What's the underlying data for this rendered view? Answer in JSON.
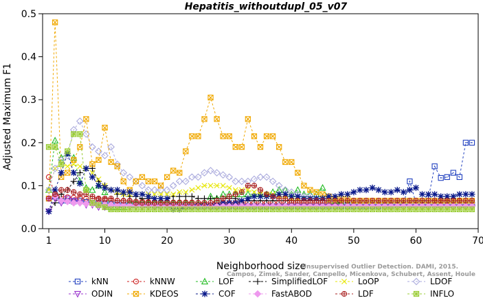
{
  "chart_data": {
    "type": "line",
    "title": "Hepatitis_withoutdupl_05_v07",
    "xlabel": "Neighborhood size",
    "ylabel": "Adjusted Maximum F1",
    "xlim": [
      0,
      70
    ],
    "ylim": [
      0,
      0.5
    ],
    "xticks": [
      1,
      10,
      20,
      30,
      40,
      50,
      60,
      70
    ],
    "yticks": [
      0.0,
      0.1,
      0.2,
      0.3,
      0.4,
      0.5
    ],
    "xtick_labels": [
      "1",
      "10",
      "20",
      "30",
      "40",
      "50",
      "60",
      "70"
    ],
    "ytick_labels": [
      "0.0",
      "0.1",
      "0.2",
      "0.3",
      "0.4",
      "0.5"
    ],
    "x": [
      1,
      2,
      3,
      4,
      5,
      6,
      7,
      8,
      9,
      10,
      11,
      12,
      13,
      14,
      15,
      16,
      17,
      18,
      19,
      20,
      21,
      22,
      23,
      24,
      25,
      26,
      27,
      28,
      29,
      30,
      31,
      32,
      33,
      34,
      35,
      36,
      37,
      38,
      39,
      40,
      41,
      42,
      43,
      44,
      45,
      46,
      47,
      48,
      49,
      50,
      51,
      52,
      53,
      54,
      55,
      56,
      57,
      58,
      59,
      60,
      61,
      62,
      63,
      64,
      65,
      66,
      67,
      68,
      69
    ],
    "legend_position": "bottom",
    "legend_columns": 6,
    "series": [
      {
        "name": "kNN",
        "color": "#1f3fbf",
        "marker": "square-dot",
        "values": [
          0.07,
          0.075,
          0.065,
          0.065,
          0.063,
          0.065,
          0.062,
          0.06,
          0.06,
          0.058,
          0.057,
          0.056,
          0.055,
          0.055,
          0.055,
          0.055,
          0.055,
          0.054,
          0.054,
          0.054,
          0.053,
          0.053,
          0.052,
          0.052,
          0.052,
          0.052,
          0.052,
          0.052,
          0.052,
          0.052,
          0.052,
          0.052,
          0.052,
          0.052,
          0.052,
          0.052,
          0.052,
          0.052,
          0.052,
          0.052,
          0.052,
          0.052,
          0.052,
          0.052,
          0.052,
          0.052,
          0.052,
          0.052,
          0.052,
          0.052,
          0.052,
          0.052,
          0.052,
          0.052,
          0.052,
          0.052,
          0.055,
          0.058,
          0.11,
          0.06,
          0.06,
          0.07,
          0.145,
          0.118,
          0.12,
          0.13,
          0.12,
          0.2,
          0.2
        ]
      },
      {
        "name": "kNNW",
        "color": "#cc2222",
        "marker": "circle",
        "values": [
          0.12,
          0.08,
          0.075,
          0.073,
          0.072,
          0.072,
          0.07,
          0.07,
          0.068,
          0.067,
          0.066,
          0.065,
          0.064,
          0.064,
          0.063,
          0.063,
          0.062,
          0.062,
          0.062,
          0.062,
          0.061,
          0.061,
          0.061,
          0.061,
          0.06,
          0.06,
          0.06,
          0.06,
          0.06,
          0.06,
          0.06,
          0.06,
          0.06,
          0.06,
          0.06,
          0.06,
          0.06,
          0.06,
          0.06,
          0.06,
          0.06,
          0.06,
          0.06,
          0.06,
          0.06,
          0.06,
          0.06,
          0.06,
          0.06,
          0.06,
          0.06,
          0.06,
          0.06,
          0.06,
          0.06,
          0.06,
          0.06,
          0.06,
          0.06,
          0.06,
          0.06,
          0.06,
          0.062,
          0.062,
          0.062,
          0.064,
          0.064,
          0.065,
          0.065
        ]
      },
      {
        "name": "LOF",
        "color": "#22bb22",
        "marker": "triangle-up",
        "values": [
          0.09,
          0.205,
          0.165,
          0.175,
          0.165,
          0.11,
          0.095,
          0.09,
          0.1,
          0.085,
          0.05,
          0.05,
          0.05,
          0.06,
          0.06,
          0.062,
          0.06,
          0.06,
          0.06,
          0.06,
          0.06,
          0.06,
          0.06,
          0.06,
          0.058,
          0.058,
          0.075,
          0.07,
          0.08,
          0.08,
          0.08,
          0.08,
          0.08,
          0.08,
          0.08,
          0.08,
          0.085,
          0.09,
          0.09,
          0.08,
          0.09,
          0.08,
          0.08,
          0.08,
          0.095,
          0.07,
          0.065,
          0.06,
          0.06,
          0.06,
          0.06,
          0.06,
          0.06,
          0.06,
          0.06,
          0.06,
          0.06,
          0.06,
          0.06,
          0.06,
          0.06,
          0.06,
          0.06,
          0.06,
          0.06,
          0.06,
          0.06,
          0.06,
          0.06
        ]
      },
      {
        "name": "SimplifiedLOF",
        "color": "#000000",
        "marker": "plus",
        "values": [
          0.04,
          0.06,
          0.08,
          0.09,
          0.11,
          0.13,
          0.14,
          0.14,
          0.11,
          0.1,
          0.09,
          0.08,
          0.08,
          0.075,
          0.075,
          0.07,
          0.07,
          0.07,
          0.07,
          0.07,
          0.075,
          0.075,
          0.075,
          0.075,
          0.07,
          0.07,
          0.07,
          0.07,
          0.07,
          0.07,
          0.07,
          0.065,
          0.065,
          0.065,
          0.065,
          0.065,
          0.065,
          0.065,
          0.065,
          0.065,
          0.065,
          0.065,
          0.065,
          0.065,
          0.065,
          0.065,
          0.065,
          0.06,
          0.06,
          0.06,
          0.06,
          0.06,
          0.06,
          0.06,
          0.06,
          0.06,
          0.06,
          0.06,
          0.06,
          0.06,
          0.06,
          0.06,
          0.06,
          0.06,
          0.06,
          0.06,
          0.06,
          0.06,
          0.06
        ]
      },
      {
        "name": "LoOP",
        "color": "#e6e600",
        "marker": "x",
        "values": [
          0.09,
          0.14,
          0.15,
          0.145,
          0.15,
          0.145,
          0.14,
          0.13,
          0.115,
          0.1,
          0.09,
          0.085,
          0.08,
          0.08,
          0.08,
          0.08,
          0.08,
          0.08,
          0.08,
          0.08,
          0.08,
          0.085,
          0.085,
          0.09,
          0.095,
          0.1,
          0.1,
          0.1,
          0.1,
          0.095,
          0.09,
          0.09,
          0.09,
          0.085,
          0.08,
          0.08,
          0.08,
          0.075,
          0.075,
          0.07,
          0.07,
          0.07,
          0.07,
          0.07,
          0.07,
          0.065,
          0.065,
          0.06,
          0.06,
          0.06,
          0.055,
          0.055,
          0.055,
          0.055,
          0.05,
          0.05,
          0.05,
          0.05,
          0.05,
          0.05,
          0.05,
          0.05,
          0.05,
          0.05,
          0.05,
          0.05,
          0.05,
          0.05,
          0.05
        ]
      },
      {
        "name": "LDOF",
        "color": "#aaaadd",
        "marker": "diamond",
        "values": [
          0.09,
          0.14,
          0.16,
          0.17,
          0.23,
          0.25,
          0.22,
          0.19,
          0.18,
          0.17,
          0.19,
          0.15,
          0.13,
          0.12,
          0.11,
          0.1,
          0.09,
          0.09,
          0.09,
          0.09,
          0.1,
          0.11,
          0.11,
          0.12,
          0.12,
          0.13,
          0.135,
          0.13,
          0.125,
          0.12,
          0.11,
          0.11,
          0.11,
          0.115,
          0.12,
          0.12,
          0.11,
          0.1,
          0.09,
          0.085,
          0.08,
          0.075,
          0.075,
          0.07,
          0.07,
          0.065,
          0.065,
          0.065,
          0.06,
          0.06,
          0.06,
          0.06,
          0.06,
          0.06,
          0.06,
          0.06,
          0.06,
          0.06,
          0.06,
          0.06,
          0.06,
          0.06,
          0.06,
          0.06,
          0.06,
          0.06,
          0.06,
          0.06,
          0.06
        ]
      },
      {
        "name": "ODIN",
        "color": "#9933cc",
        "marker": "triangle-down",
        "values": [
          0.04,
          0.07,
          0.06,
          0.07,
          0.065,
          0.06,
          0.055,
          0.055,
          0.05,
          0.05,
          0.05,
          0.05,
          0.05,
          0.05,
          0.05,
          0.05,
          0.05,
          0.05,
          0.05,
          0.05,
          0.05,
          0.05,
          0.05,
          0.05,
          0.05,
          0.05,
          0.05,
          0.05,
          0.05,
          0.05,
          0.05,
          0.05,
          0.05,
          0.05,
          0.05,
          0.05,
          0.05,
          0.05,
          0.05,
          0.05,
          0.05,
          0.05,
          0.05,
          0.05,
          0.05,
          0.05,
          0.05,
          0.05,
          0.05,
          0.05,
          0.05,
          0.05,
          0.05,
          0.05,
          0.05,
          0.05,
          0.05,
          0.05,
          0.05,
          0.05,
          0.05,
          0.05,
          0.05,
          0.05,
          0.05,
          0.05,
          0.05,
          0.05,
          0.05
        ]
      },
      {
        "name": "KDEOS",
        "color": "#f0a800",
        "marker": "square-x",
        "values": [
          0.07,
          0.48,
          0.12,
          0.13,
          0.16,
          0.19,
          0.255,
          0.15,
          0.16,
          0.235,
          0.155,
          0.145,
          0.11,
          0.09,
          0.11,
          0.12,
          0.11,
          0.11,
          0.1,
          0.12,
          0.135,
          0.13,
          0.18,
          0.215,
          0.215,
          0.255,
          0.305,
          0.255,
          0.215,
          0.215,
          0.19,
          0.19,
          0.255,
          0.215,
          0.19,
          0.215,
          0.215,
          0.19,
          0.155,
          0.155,
          0.13,
          0.1,
          0.09,
          0.085,
          0.08,
          0.075,
          0.07,
          0.07,
          0.07,
          0.065,
          0.065,
          0.065,
          0.065,
          0.065,
          0.065,
          0.065,
          0.065,
          0.065,
          0.065,
          0.065,
          0.065,
          0.065,
          0.065,
          0.065,
          0.065,
          0.065,
          0.065,
          0.065,
          0.065
        ]
      },
      {
        "name": "COF",
        "color": "#0a1a8a",
        "marker": "asterisk",
        "values": [
          0.04,
          0.09,
          0.13,
          0.175,
          0.13,
          0.105,
          0.14,
          0.12,
          0.1,
          0.095,
          0.09,
          0.09,
          0.085,
          0.085,
          0.08,
          0.08,
          0.075,
          0.07,
          0.07,
          0.07,
          0.045,
          0.045,
          0.05,
          0.05,
          0.055,
          0.055,
          0.055,
          0.055,
          0.06,
          0.06,
          0.06,
          0.065,
          0.07,
          0.075,
          0.075,
          0.075,
          0.075,
          0.08,
          0.08,
          0.075,
          0.075,
          0.07,
          0.07,
          0.07,
          0.07,
          0.075,
          0.075,
          0.08,
          0.08,
          0.085,
          0.09,
          0.09,
          0.095,
          0.09,
          0.085,
          0.085,
          0.09,
          0.085,
          0.09,
          0.095,
          0.08,
          0.08,
          0.08,
          0.075,
          0.075,
          0.075,
          0.08,
          0.08,
          0.08
        ]
      },
      {
        "name": "FastABOD",
        "color": "#ee99ee",
        "marker": "diamond-filled",
        "values": [
          0.07,
          0.075,
          0.065,
          0.063,
          0.06,
          0.06,
          0.058,
          0.058,
          0.056,
          0.055,
          0.055,
          0.055,
          0.054,
          0.054,
          0.054,
          0.053,
          0.053,
          0.053,
          0.053,
          0.053,
          0.053,
          0.053,
          0.052,
          0.052,
          0.052,
          0.052,
          0.052,
          0.052,
          0.052,
          0.052,
          0.052,
          0.052,
          0.052,
          0.052,
          0.052,
          0.052,
          0.052,
          0.052,
          0.052,
          0.052,
          0.052,
          0.052,
          0.052,
          0.052,
          0.052,
          0.052,
          0.052,
          0.052,
          0.052,
          0.052,
          0.052,
          0.052,
          0.052,
          0.052,
          0.052,
          0.052,
          0.052,
          0.052,
          0.052,
          0.052,
          0.052,
          0.052,
          0.052,
          0.052,
          0.052,
          0.052,
          0.052,
          0.052,
          0.052
        ]
      },
      {
        "name": "LDF",
        "color": "#aa2222",
        "marker": "circle-plus",
        "values": [
          0.07,
          0.08,
          0.09,
          0.09,
          0.085,
          0.08,
          0.08,
          0.075,
          0.07,
          0.07,
          0.07,
          0.065,
          0.065,
          0.065,
          0.06,
          0.06,
          0.06,
          0.06,
          0.06,
          0.06,
          0.06,
          0.06,
          0.06,
          0.06,
          0.06,
          0.06,
          0.06,
          0.065,
          0.07,
          0.075,
          0.08,
          0.085,
          0.1,
          0.1,
          0.09,
          0.08,
          0.075,
          0.07,
          0.07,
          0.065,
          0.065,
          0.065,
          0.065,
          0.065,
          0.065,
          0.065,
          0.065,
          0.065,
          0.065,
          0.065,
          0.065,
          0.065,
          0.065,
          0.065,
          0.065,
          0.065,
          0.065,
          0.065,
          0.065,
          0.065,
          0.065,
          0.065,
          0.065,
          0.065,
          0.065,
          0.065,
          0.065,
          0.065,
          0.065
        ]
      },
      {
        "name": "INFLO",
        "color": "#99cc33",
        "marker": "square-star",
        "values": [
          0.19,
          0.19,
          0.15,
          0.18,
          0.22,
          0.22,
          0.09,
          0.06,
          0.055,
          0.05,
          0.045,
          0.045,
          0.045,
          0.045,
          0.045,
          0.045,
          0.045,
          0.045,
          0.045,
          0.045,
          0.045,
          0.045,
          0.045,
          0.045,
          0.045,
          0.045,
          0.045,
          0.045,
          0.045,
          0.045,
          0.045,
          0.045,
          0.045,
          0.045,
          0.045,
          0.045,
          0.045,
          0.045,
          0.045,
          0.045,
          0.045,
          0.045,
          0.045,
          0.045,
          0.045,
          0.045,
          0.045,
          0.045,
          0.045,
          0.045,
          0.045,
          0.045,
          0.045,
          0.045,
          0.045,
          0.045,
          0.045,
          0.045,
          0.045,
          0.045,
          0.045,
          0.045,
          0.045,
          0.045,
          0.045,
          0.045,
          0.045,
          0.045,
          0.045
        ]
      }
    ]
  },
  "watermark": {
    "line1": "Unsupervised Outlier Detection. DAMI, 2015.",
    "line2": "Campos, Zimek, Sander, Campello, Micenkova, Schubert, Assent, Houle"
  }
}
